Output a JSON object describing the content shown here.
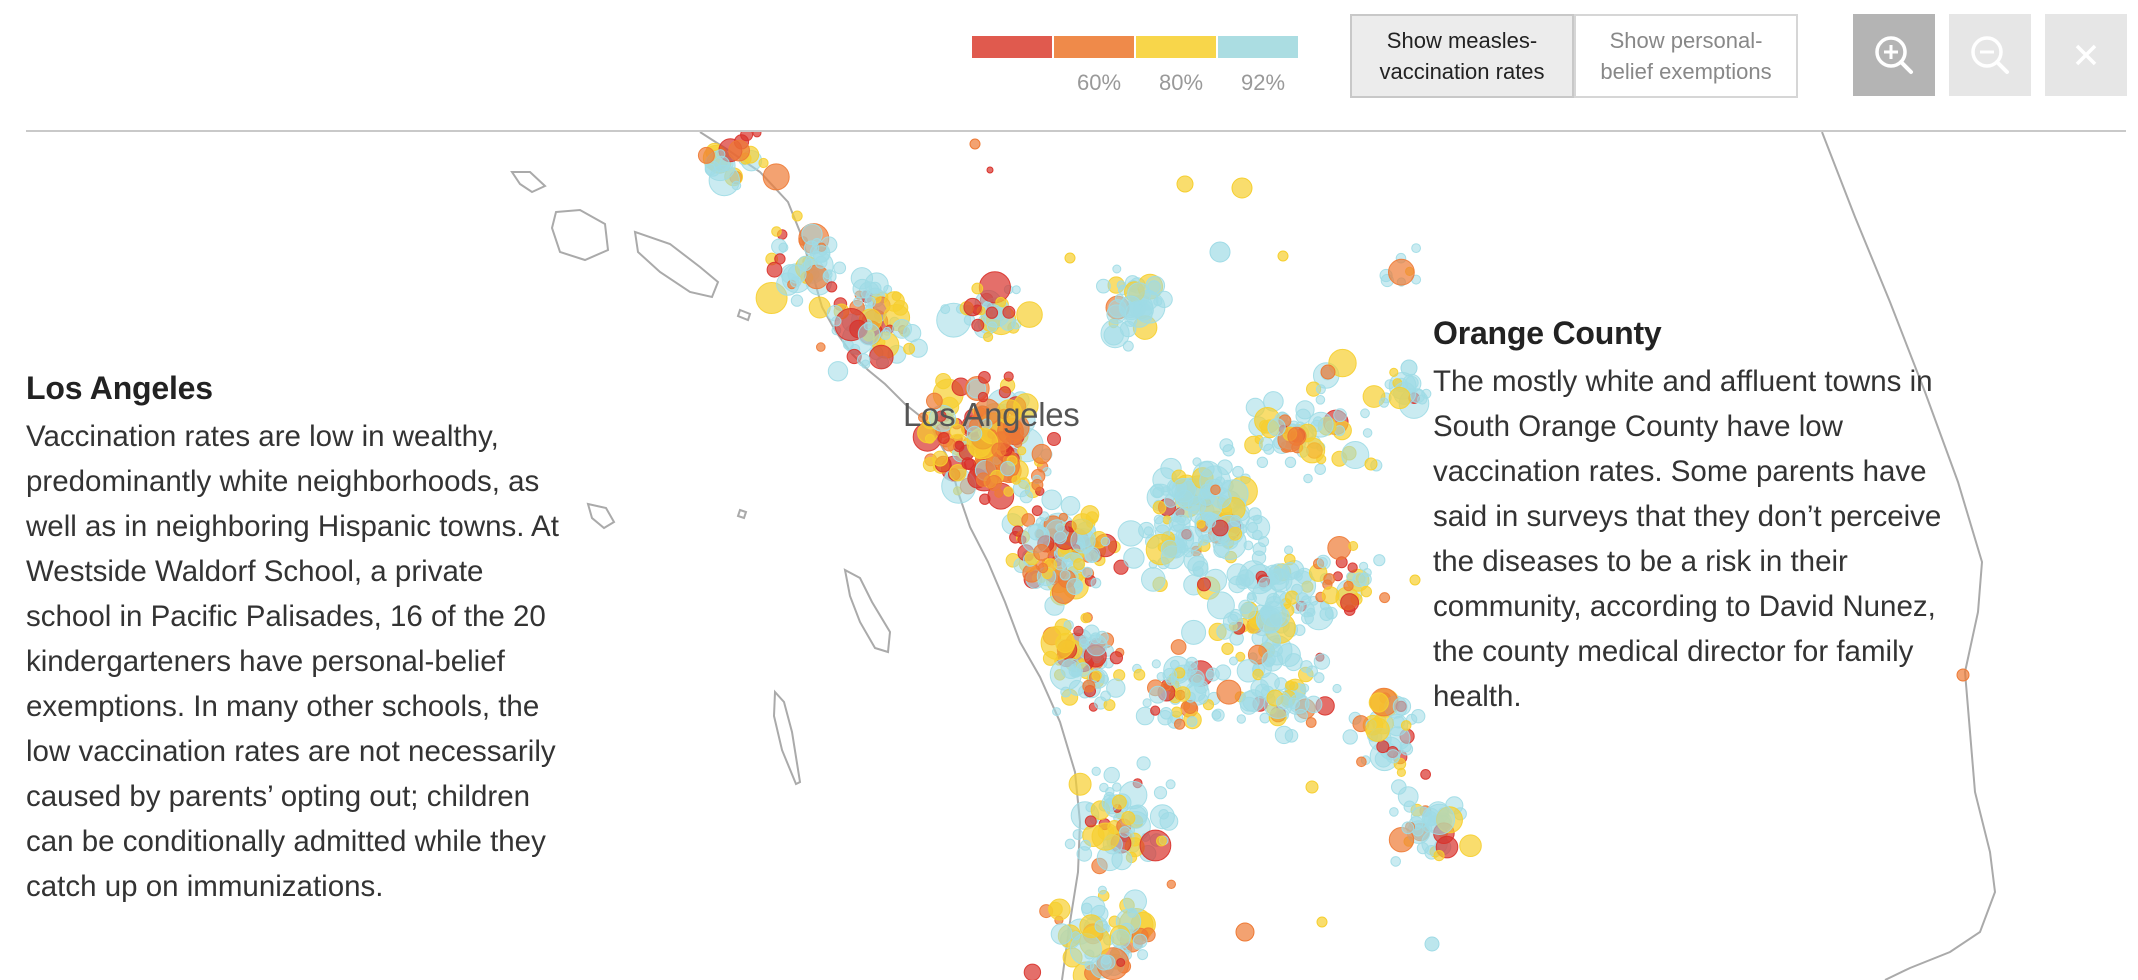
{
  "legend": {
    "colors": [
      "#e05a4e",
      "#ef8a4a",
      "#f8d64a",
      "#abdde2"
    ],
    "ticks": [
      "60%",
      "80%",
      "92%"
    ]
  },
  "toggles": {
    "measles": "Show measles-\nvaccination rates",
    "exemptions": "Show personal-\nbelief exemptions"
  },
  "controls": {
    "zoom_in_icon": "zoom-in-icon",
    "zoom_out_icon": "zoom-out-icon",
    "close_icon": "close-icon",
    "zoom_in_bg": "#b4b4b4",
    "zoom_out_bg": "#e6e6e6",
    "close_bg": "#e6e6e6"
  },
  "map": {
    "city_label": "Los Angeles",
    "coastline_color": "#aaaaaa",
    "point_colors": {
      "low": "#d9322b",
      "mid_low": "#ee7a35",
      "mid_high": "#f6cf2f",
      "high": "#9fdbe6"
    }
  },
  "panels": {
    "la": {
      "title": "Los Angeles",
      "body": "Vaccination rates are low in wealthy, predominantly white neighborhoods, as well as in neighboring Hispanic towns. At Westside Waldorf School, a private school in Pacific Palisades, 16 of the 20 kindergarteners have personal-belief exemptions. In many other schools, the low vaccination rates are not necessarily caused by parents’ opting out; children can be conditionally admitted while they catch up on immunizations."
    },
    "oc": {
      "title": "Orange County",
      "body": "The mostly white and affluent towns in South Orange County have low vaccination rates. Some parents have said in surveys that they don’t perceive the diseases to be a risk in their community, according to David Nunez, the county medical director for family health."
    }
  }
}
